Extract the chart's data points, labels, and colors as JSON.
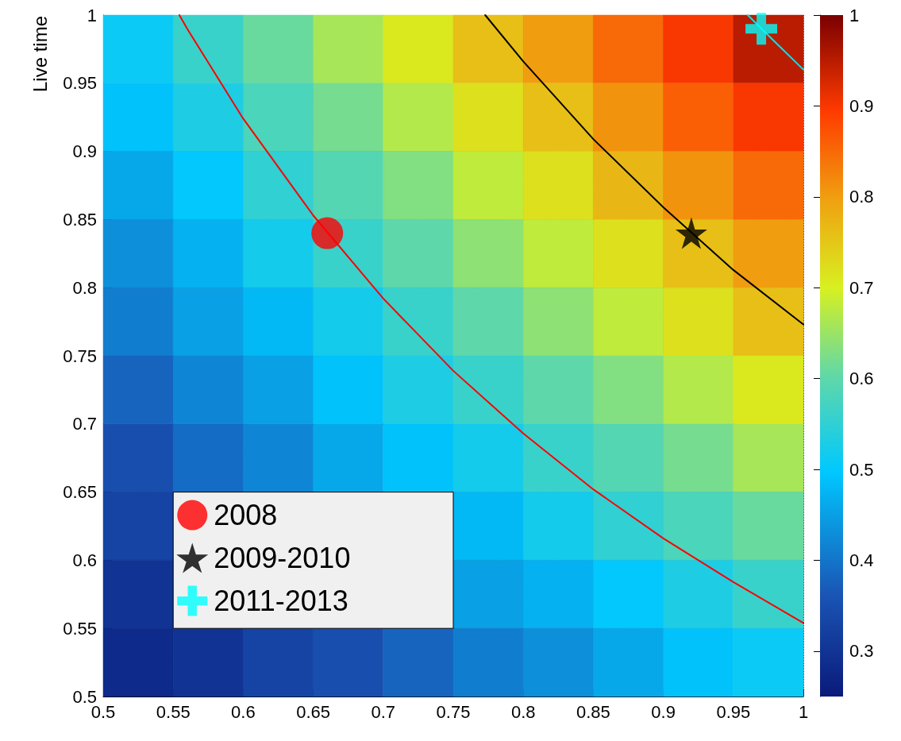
{
  "chart_data": {
    "type": "heatmap",
    "ylabel": "Live time",
    "x": [
      0.525,
      0.575,
      0.625,
      0.675,
      0.725,
      0.775,
      0.825,
      0.875,
      0.925,
      0.975
    ],
    "y": [
      0.975,
      0.925,
      0.875,
      0.825,
      0.775,
      0.725,
      0.675,
      0.625,
      0.575,
      0.525
    ],
    "cells": [
      [
        0.51,
        0.56,
        0.61,
        0.66,
        0.71,
        0.76,
        0.8,
        0.85,
        0.9,
        0.95
      ],
      [
        0.49,
        0.53,
        0.58,
        0.62,
        0.67,
        0.72,
        0.76,
        0.81,
        0.86,
        0.9
      ],
      [
        0.46,
        0.5,
        0.55,
        0.59,
        0.63,
        0.68,
        0.72,
        0.77,
        0.81,
        0.85
      ],
      [
        0.43,
        0.47,
        0.52,
        0.56,
        0.6,
        0.64,
        0.68,
        0.72,
        0.76,
        0.8
      ],
      [
        0.41,
        0.45,
        0.48,
        0.52,
        0.56,
        0.6,
        0.64,
        0.68,
        0.72,
        0.76
      ],
      [
        0.38,
        0.42,
        0.45,
        0.49,
        0.53,
        0.56,
        0.6,
        0.63,
        0.67,
        0.71
      ],
      [
        0.35,
        0.39,
        0.42,
        0.46,
        0.49,
        0.52,
        0.56,
        0.59,
        0.62,
        0.66
      ],
      [
        0.33,
        null,
        null,
        null,
        null,
        0.48,
        0.52,
        0.55,
        0.58,
        0.61
      ],
      [
        0.3,
        null,
        null,
        null,
        null,
        0.45,
        0.47,
        0.5,
        0.53,
        0.56
      ],
      [
        0.28,
        0.3,
        0.33,
        0.35,
        0.38,
        0.41,
        0.43,
        0.46,
        0.49,
        0.51
      ]
    ],
    "clim": [
      0.25,
      1
    ],
    "cticks": [
      0.3,
      0.4,
      0.5,
      0.6,
      0.7,
      0.8,
      0.9,
      1
    ],
    "xlim": [
      0.5,
      1
    ],
    "xticks": [
      0.5,
      0.55,
      0.6,
      0.65,
      0.7,
      0.75,
      0.8,
      0.85,
      0.9,
      0.95,
      1
    ],
    "ylim": [
      0.5,
      1
    ],
    "yticks": [
      0.5,
      0.55,
      0.6,
      0.65,
      0.7,
      0.75,
      0.8,
      0.85,
      0.9,
      0.95,
      1
    ],
    "grid": true,
    "legend": "bottom left",
    "series": [
      {
        "type": "line",
        "color": "#ff0000",
        "x": [
          0.5544,
          0.56,
          0.6,
          0.65,
          0.7,
          0.75,
          0.8,
          0.85,
          0.9,
          0.95,
          1
        ],
        "values": [
          1,
          0.99,
          0.924,
          0.853,
          0.792,
          0.739,
          0.693,
          0.652,
          0.616,
          0.584,
          0.554
        ]
      },
      {
        "type": "line",
        "color": "#000000",
        "x": [
          0.7728,
          0.8,
          0.85,
          0.9,
          0.95,
          1
        ],
        "values": [
          1,
          0.966,
          0.909,
          0.859,
          0.813,
          0.773
        ]
      },
      {
        "type": "line",
        "color": "#00e5ee",
        "x": [
          0.9603,
          0.98,
          1
        ],
        "values": [
          1,
          0.98,
          0.96
        ]
      },
      {
        "type": "scatter",
        "name": "2008",
        "color": "#ff0000",
        "marker": "circle",
        "x": [
          0.66
        ],
        "values": [
          0.84
        ]
      },
      {
        "type": "scatter",
        "name": "2009-2010",
        "color": "#000000",
        "marker": "star",
        "x": [
          0.92
        ],
        "values": [
          0.84
        ]
      },
      {
        "type": "scatter",
        "name": "2011-2013",
        "color": "#00ffff",
        "marker": "cross",
        "x": [
          0.97
        ],
        "values": [
          0.99
        ]
      }
    ]
  }
}
